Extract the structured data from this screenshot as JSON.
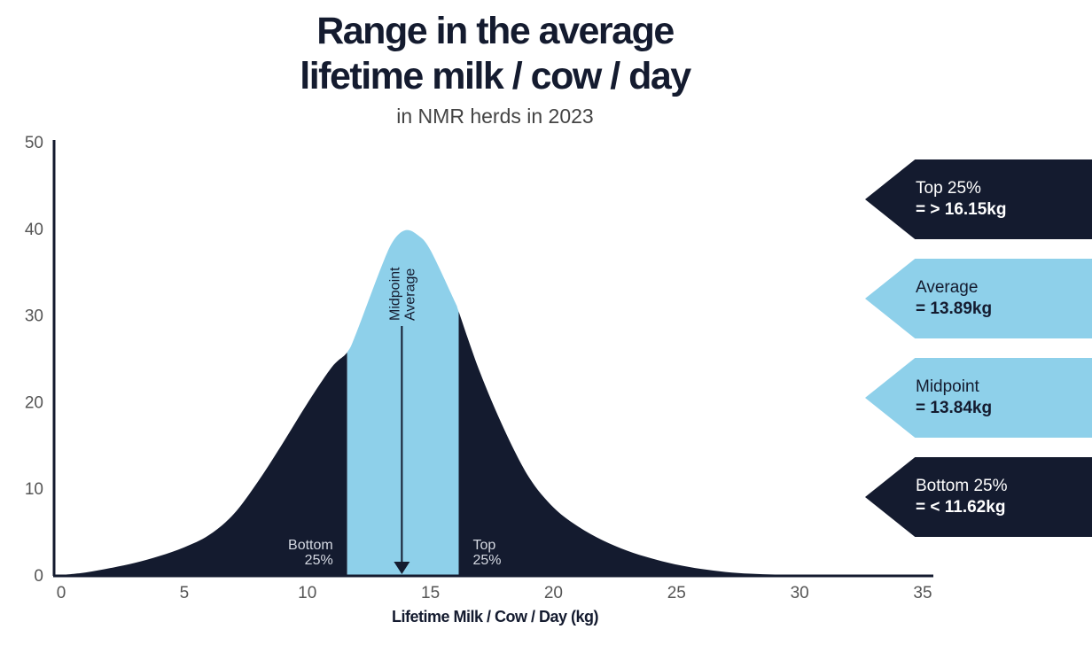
{
  "chart_data": {
    "type": "area",
    "title": "Range in the average lifetime milk / cow / day",
    "title_lines": [
      "Range in the average",
      "lifetime milk / cow / day"
    ],
    "subtitle": "in NMR herds in 2023",
    "xlabel": "Lifetime Milk / Cow / Day (kg)",
    "ylabel": "",
    "xlim": [
      0,
      35
    ],
    "ylim": [
      0,
      50
    ],
    "x_ticks": [
      0,
      5,
      10,
      15,
      20,
      25,
      30,
      35
    ],
    "y_ticks": [
      0,
      10,
      20,
      30,
      40,
      50
    ],
    "grid": false,
    "curve": {
      "x": [
        0,
        1,
        2,
        3,
        4,
        5,
        6,
        7,
        8,
        9,
        10,
        11,
        11.62,
        12,
        13,
        13.5,
        14,
        14.5,
        15,
        16,
        16.15,
        17,
        18,
        19,
        20,
        21,
        22,
        23,
        24,
        25,
        26,
        27,
        28,
        29,
        30,
        35
      ],
      "y": [
        0,
        0.3,
        0.8,
        1.4,
        2.2,
        3.2,
        4.6,
        7.0,
        10.8,
        15.2,
        19.8,
        24.0,
        25.7,
        28.0,
        35.5,
        38.6,
        39.8,
        39.2,
        37.5,
        31.5,
        30.4,
        23.5,
        16.8,
        11.3,
        7.8,
        5.6,
        4.0,
        2.8,
        1.9,
        1.2,
        0.7,
        0.35,
        0.15,
        0.05,
        0,
        0
      ]
    },
    "bands": [
      {
        "name": "Bottom 25%",
        "from": 0,
        "to": 11.62,
        "color": "#141b2f"
      },
      {
        "name": "Middle",
        "from": 11.62,
        "to": 16.15,
        "color": "#8ed0ea"
      },
      {
        "name": "Top 25%",
        "from": 16.15,
        "to": 35,
        "color": "#141b2f"
      }
    ],
    "annotations": {
      "bottom_band_label": [
        "Bottom",
        "25%"
      ],
      "top_band_label": [
        "Top",
        "25%"
      ],
      "arrow_label": [
        "Midpoint",
        "Average"
      ],
      "arrow_x": 13.84
    },
    "legend": [
      {
        "label": "Top 25%",
        "value": "= > 16.15kg",
        "style": "dark"
      },
      {
        "label": "Average",
        "value": "= 13.89kg",
        "style": "light"
      },
      {
        "label": "Midpoint",
        "value": "= 13.84kg",
        "style": "light"
      },
      {
        "label": "Bottom 25%",
        "value": "= < 11.62kg",
        "style": "dark"
      }
    ],
    "legend_position": "right"
  },
  "colors": {
    "dark": "#141b2f",
    "light": "#8ed0ea",
    "axis": "#141b2f",
    "tick": "#555555"
  }
}
